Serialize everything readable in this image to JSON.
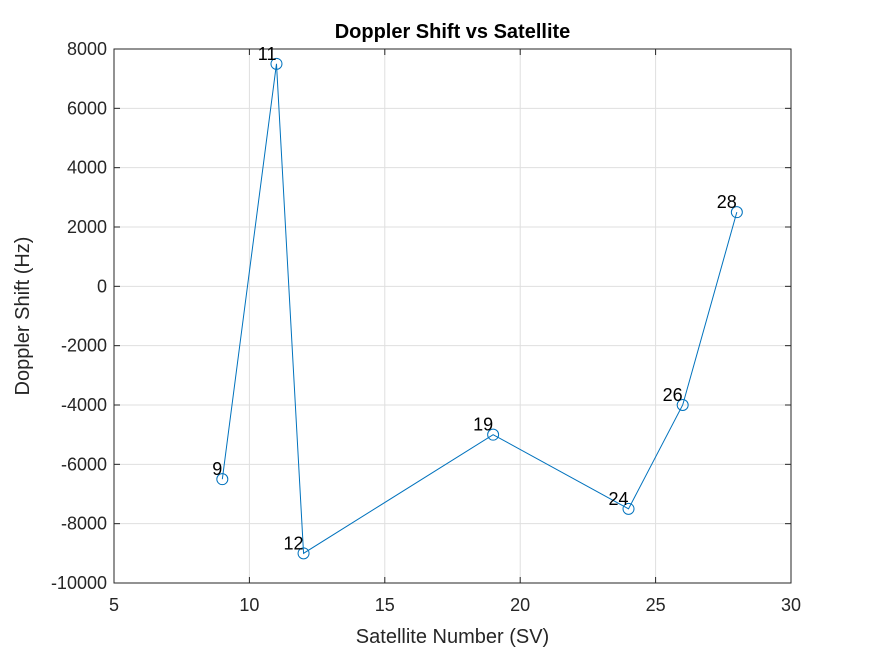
{
  "chart_data": {
    "type": "line",
    "title": "Doppler Shift vs Satellite",
    "xlabel": "Satellite Number (SV)",
    "ylabel": "Doppler Shift (Hz)",
    "xlim": [
      5,
      30
    ],
    "ylim": [
      -10000,
      8000
    ],
    "xticks": [
      5,
      10,
      15,
      20,
      25,
      30
    ],
    "yticks": [
      -10000,
      -8000,
      -6000,
      -4000,
      -2000,
      0,
      2000,
      4000,
      6000,
      8000
    ],
    "grid": true,
    "marker": "circle",
    "color": "#0072BD",
    "series": [
      {
        "x": [
          9,
          11,
          12,
          19,
          24,
          26,
          28
        ],
        "y": [
          -6500,
          7500,
          -9000,
          -5000,
          -7500,
          -4000,
          2500
        ],
        "labels": [
          "9",
          "11",
          "12",
          "19",
          "24",
          "26",
          "28"
        ]
      }
    ]
  }
}
